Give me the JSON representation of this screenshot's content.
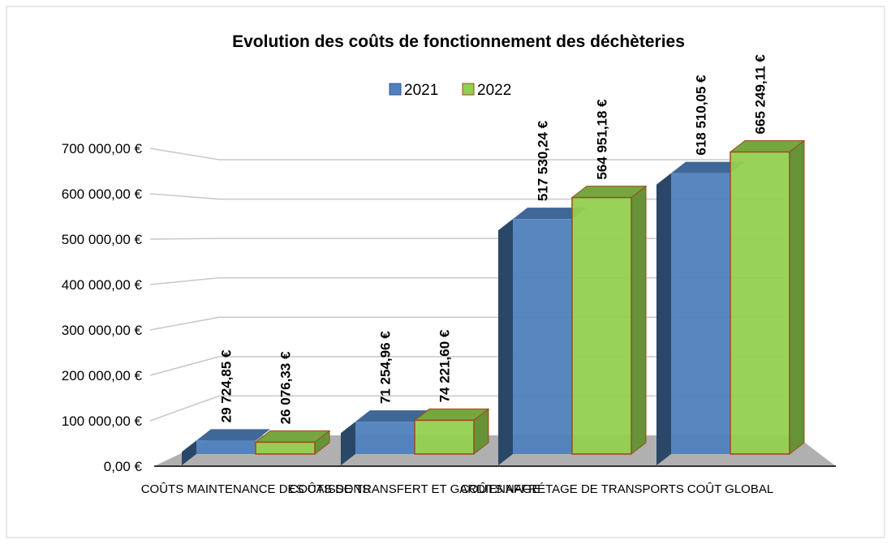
{
  "chart_data": {
    "type": "bar3d",
    "title": "Evolution des coûts de fonctionnement des déchèteries",
    "categories": [
      "COÛTS MAINTENANCE DES CAISSONS",
      "COÛTS DE TRANSFERT ET GARDIENNAGE",
      "COÛTS AFFRÉTAGE DE TRANSPORTS",
      "COÛT GLOBAL"
    ],
    "series": [
      {
        "name": "2021",
        "color": "#4f81bd",
        "values": [
          29724.85,
          71254.96,
          517530.24,
          618510.05
        ],
        "value_labels": [
          "29 724,85 €",
          "71 254,96 €",
          "517 530,24 €",
          "618 510,05 €"
        ]
      },
      {
        "name": "2022",
        "color": "#92d050",
        "values": [
          26076.33,
          74221.6,
          564951.18,
          665249.11
        ],
        "value_labels": [
          "26 076,33 €",
          "74 221,60 €",
          "564 951,18 €",
          "665 249,11 €"
        ]
      }
    ],
    "ylim": [
      0,
      700000
    ],
    "yticks": [
      {
        "value": 0,
        "label": "0,00 €"
      },
      {
        "value": 100000,
        "label": "100 000,00 €"
      },
      {
        "value": 200000,
        "label": "200 000,00 €"
      },
      {
        "value": 300000,
        "label": "300 000,00 €"
      },
      {
        "value": 400000,
        "label": "400 000,00 €"
      },
      {
        "value": 500000,
        "label": "500 000,00 €"
      },
      {
        "value": 600000,
        "label": "600 000,00 €"
      },
      {
        "value": 700000,
        "label": "700 000,00 €"
      }
    ],
    "grid": true,
    "legend": "top"
  }
}
